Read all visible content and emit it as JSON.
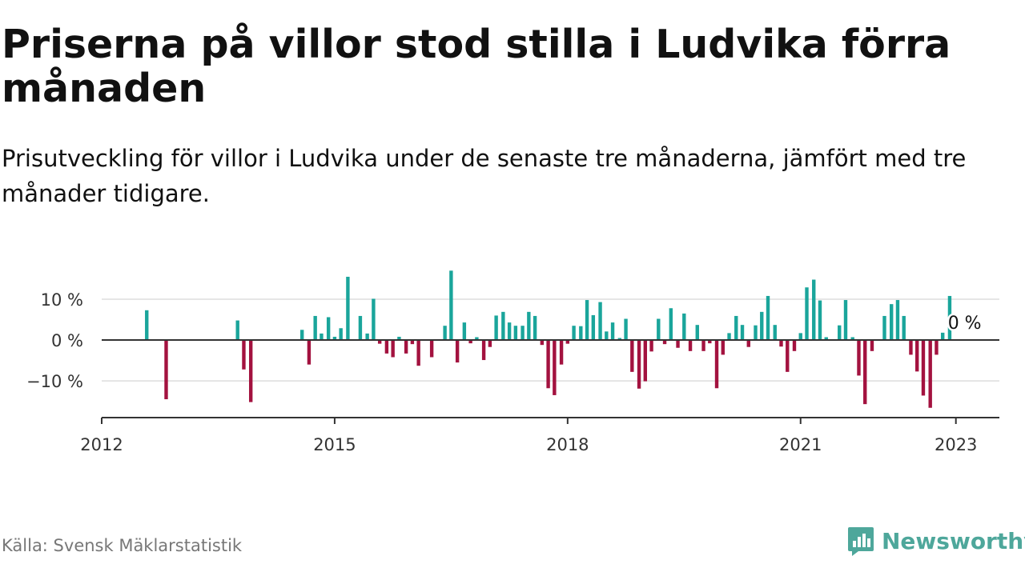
{
  "header": {
    "title": "Priserna på villor stod stilla i Ludvika förra månaden",
    "subtitle": "Prisutveckling för villor i Ludvika under de senaste tre månaderna, jämfört med tre månader tidigare."
  },
  "footer": {
    "source": "Källa: Svensk Mäklarstatistik",
    "brand": "Newsworthy",
    "brand_icon": "newsworthy-logo-icon"
  },
  "colors": {
    "positive": "#1aa59b",
    "negative": "#a3123f",
    "zero_line": "#333333",
    "grid": "#dddddd",
    "axis": "#333333",
    "brand": "#4ea79b"
  },
  "chart_data": {
    "type": "bar",
    "unit": "%",
    "ylim": [
      -19,
      20
    ],
    "xlim": [
      2012.0,
      2023.56
    ],
    "yticks": [
      10,
      0,
      -10
    ],
    "ytick_labels": [
      "10 %",
      "0 %",
      "−10 %"
    ],
    "xticks": [
      2012,
      2015,
      2018,
      2021,
      2023
    ],
    "xtick_labels": [
      "2012",
      "2015",
      "2018",
      "2021",
      "2023"
    ],
    "grid": true,
    "last_label": "0 %",
    "points": [
      {
        "x": 2012.58,
        "y": 7.3
      },
      {
        "x": 2012.83,
        "y": -14.5
      },
      {
        "x": 2013.75,
        "y": 4.8
      },
      {
        "x": 2013.83,
        "y": -7.2
      },
      {
        "x": 2013.92,
        "y": -15.2
      },
      {
        "x": 2014.58,
        "y": 2.5
      },
      {
        "x": 2014.67,
        "y": -6.0
      },
      {
        "x": 2014.75,
        "y": 5.9
      },
      {
        "x": 2014.83,
        "y": 1.6
      },
      {
        "x": 2014.92,
        "y": 5.6
      },
      {
        "x": 2015.0,
        "y": 0.8
      },
      {
        "x": 2015.08,
        "y": 2.9
      },
      {
        "x": 2015.17,
        "y": 15.5
      },
      {
        "x": 2015.33,
        "y": 5.9
      },
      {
        "x": 2015.42,
        "y": 1.6
      },
      {
        "x": 2015.5,
        "y": 10.1
      },
      {
        "x": 2015.58,
        "y": -0.9
      },
      {
        "x": 2015.67,
        "y": -3.3
      },
      {
        "x": 2015.75,
        "y": -4.2
      },
      {
        "x": 2015.83,
        "y": 0.8
      },
      {
        "x": 2015.92,
        "y": -3.3
      },
      {
        "x": 2016.0,
        "y": -1.0
      },
      {
        "x": 2016.08,
        "y": -6.3
      },
      {
        "x": 2016.25,
        "y": -4.2
      },
      {
        "x": 2016.42,
        "y": 3.5
      },
      {
        "x": 2016.5,
        "y": 17.0
      },
      {
        "x": 2016.58,
        "y": -5.5
      },
      {
        "x": 2016.67,
        "y": 4.3
      },
      {
        "x": 2016.75,
        "y": -0.8
      },
      {
        "x": 2016.83,
        "y": 0.7
      },
      {
        "x": 2016.92,
        "y": -4.9
      },
      {
        "x": 2017.0,
        "y": -1.7
      },
      {
        "x": 2017.08,
        "y": 6.0
      },
      {
        "x": 2017.17,
        "y": 6.9
      },
      {
        "x": 2017.25,
        "y": 4.3
      },
      {
        "x": 2017.33,
        "y": 3.5
      },
      {
        "x": 2017.42,
        "y": 3.5
      },
      {
        "x": 2017.5,
        "y": 6.9
      },
      {
        "x": 2017.58,
        "y": 5.9
      },
      {
        "x": 2017.67,
        "y": -1.2
      },
      {
        "x": 2017.75,
        "y": -11.8
      },
      {
        "x": 2017.83,
        "y": -13.5
      },
      {
        "x": 2017.92,
        "y": -6.0
      },
      {
        "x": 2018.0,
        "y": -0.9
      },
      {
        "x": 2018.08,
        "y": 3.5
      },
      {
        "x": 2018.17,
        "y": 3.4
      },
      {
        "x": 2018.25,
        "y": 9.8
      },
      {
        "x": 2018.33,
        "y": 6.1
      },
      {
        "x": 2018.42,
        "y": 9.3
      },
      {
        "x": 2018.5,
        "y": 2.1
      },
      {
        "x": 2018.58,
        "y": 4.3
      },
      {
        "x": 2018.67,
        "y": 0.5
      },
      {
        "x": 2018.75,
        "y": 5.2
      },
      {
        "x": 2018.83,
        "y": -7.8
      },
      {
        "x": 2018.92,
        "y": -11.9
      },
      {
        "x": 2019.0,
        "y": -10.1
      },
      {
        "x": 2019.08,
        "y": -2.8
      },
      {
        "x": 2019.17,
        "y": 5.2
      },
      {
        "x": 2019.25,
        "y": -1.0
      },
      {
        "x": 2019.33,
        "y": 7.8
      },
      {
        "x": 2019.42,
        "y": -1.9
      },
      {
        "x": 2019.5,
        "y": 6.5
      },
      {
        "x": 2019.58,
        "y": -2.7
      },
      {
        "x": 2019.67,
        "y": 3.7
      },
      {
        "x": 2019.75,
        "y": -2.7
      },
      {
        "x": 2019.83,
        "y": -0.8
      },
      {
        "x": 2019.92,
        "y": -11.8
      },
      {
        "x": 2020.0,
        "y": -3.6
      },
      {
        "x": 2020.08,
        "y": 1.7
      },
      {
        "x": 2020.17,
        "y": 5.9
      },
      {
        "x": 2020.25,
        "y": 3.7
      },
      {
        "x": 2020.33,
        "y": -1.7
      },
      {
        "x": 2020.42,
        "y": 3.6
      },
      {
        "x": 2020.5,
        "y": 6.9
      },
      {
        "x": 2020.58,
        "y": 10.8
      },
      {
        "x": 2020.67,
        "y": 3.7
      },
      {
        "x": 2020.75,
        "y": -1.6
      },
      {
        "x": 2020.83,
        "y": -7.8
      },
      {
        "x": 2020.92,
        "y": -2.7
      },
      {
        "x": 2021.0,
        "y": 1.7
      },
      {
        "x": 2021.08,
        "y": 12.9
      },
      {
        "x": 2021.17,
        "y": 14.8
      },
      {
        "x": 2021.25,
        "y": 9.7
      },
      {
        "x": 2021.33,
        "y": 0.7
      },
      {
        "x": 2021.5,
        "y": 3.6
      },
      {
        "x": 2021.58,
        "y": 9.8
      },
      {
        "x": 2021.67,
        "y": 0.7
      },
      {
        "x": 2021.75,
        "y": -8.7
      },
      {
        "x": 2021.83,
        "y": -15.7
      },
      {
        "x": 2021.92,
        "y": -2.7
      },
      {
        "x": 2022.08,
        "y": 5.9
      },
      {
        "x": 2022.17,
        "y": 8.8
      },
      {
        "x": 2022.25,
        "y": 9.8
      },
      {
        "x": 2022.33,
        "y": 5.9
      },
      {
        "x": 2022.42,
        "y": -3.6
      },
      {
        "x": 2022.5,
        "y": -7.7
      },
      {
        "x": 2022.58,
        "y": -13.6
      },
      {
        "x": 2022.67,
        "y": -16.6
      },
      {
        "x": 2022.75,
        "y": -3.6
      },
      {
        "x": 2022.83,
        "y": 1.8
      },
      {
        "x": 2022.92,
        "y": 10.8
      },
      {
        "x": 2023.0,
        "y": 0.0
      }
    ]
  }
}
